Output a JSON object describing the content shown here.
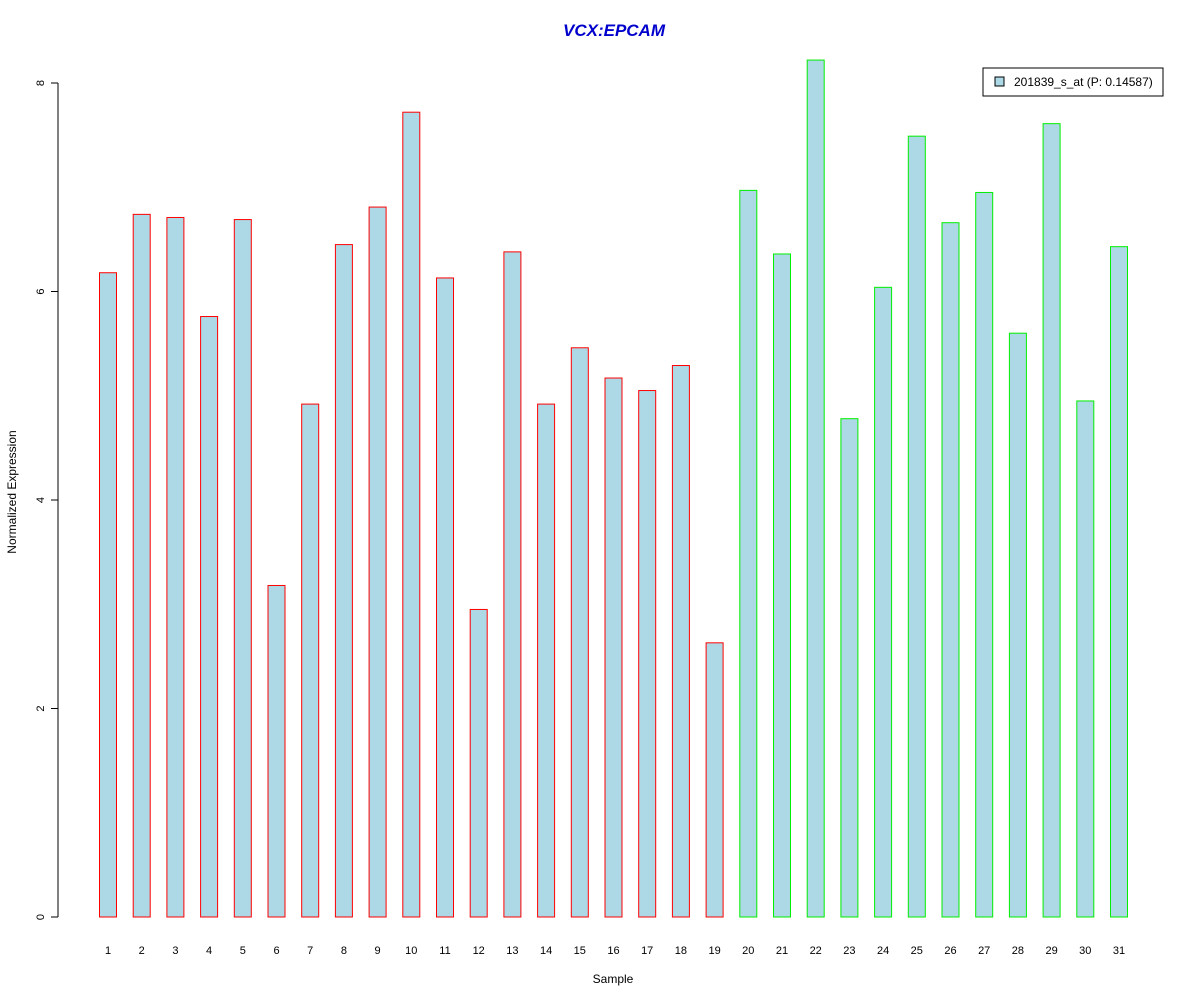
{
  "chart_data": {
    "type": "bar",
    "title": "VCX:EPCAM",
    "xlabel": "Sample",
    "ylabel": "Normalized Expression",
    "ylim": [
      0,
      8.2
    ],
    "yticks": [
      0,
      2,
      4,
      6,
      8
    ],
    "categories": [
      "1",
      "2",
      "3",
      "4",
      "5",
      "6",
      "7",
      "8",
      "9",
      "10",
      "11",
      "12",
      "13",
      "14",
      "15",
      "16",
      "17",
      "18",
      "19",
      "20",
      "21",
      "22",
      "23",
      "24",
      "25",
      "26",
      "27",
      "28",
      "29",
      "30",
      "31"
    ],
    "series": [
      {
        "name": "201839_s_at (P: 0.14587)",
        "values": [
          6.18,
          6.74,
          6.71,
          5.76,
          6.69,
          3.18,
          4.92,
          6.45,
          6.81,
          7.72,
          6.13,
          2.95,
          6.38,
          4.92,
          5.46,
          5.17,
          5.05,
          5.29,
          2.63,
          6.97,
          6.36,
          8.22,
          4.78,
          6.04,
          7.49,
          6.66,
          6.95,
          5.6,
          7.61,
          4.95,
          6.43
        ]
      }
    ],
    "groups": [
      {
        "samples": [
          1,
          19
        ],
        "border_color": "#ff0000"
      },
      {
        "samples": [
          20,
          31
        ],
        "border_color": "#00ee00"
      }
    ],
    "bar_fill": "#add8e6",
    "title_color": "#0000cd",
    "legend": {
      "position": "top-right",
      "label": "201839_s_at (P: 0.14587)"
    },
    "grid": false
  }
}
